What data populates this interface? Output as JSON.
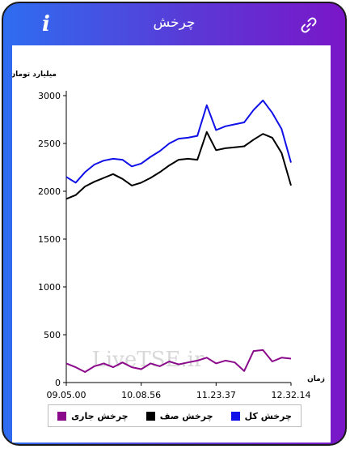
{
  "header": {
    "title": "چرخش",
    "info_glyph": "i",
    "info_icon": "info-icon",
    "link_icon": "link-icon"
  },
  "colors": {
    "total": "#1010e8",
    "queue": "#000000",
    "current": "#8b0a8b",
    "header_gradient_start": "#2e6df0",
    "header_gradient_end": "#7a16c8"
  },
  "chart_data": {
    "type": "line",
    "ylabel": "میلیارد تومان",
    "xlabel": "زمان",
    "ylim": [
      0,
      3000
    ],
    "yticks": [
      0,
      500,
      1000,
      1500,
      2000,
      2500,
      3000
    ],
    "xticks": [
      "09.05.00",
      "10.08.56",
      "11.23.37",
      "12.32.14"
    ],
    "watermark": "LiveTSE.ir",
    "grid": false,
    "legend_position": "bottom",
    "series": [
      {
        "name": "چرخش کل",
        "color": "#1010e8",
        "points": [
          [
            "09.05.00",
            2150
          ],
          [
            "09.10",
            2090
          ],
          [
            "09.20",
            2200
          ],
          [
            "09.30",
            2280
          ],
          [
            "09.40",
            2320
          ],
          [
            "09.50",
            2340
          ],
          [
            "10.00",
            2330
          ],
          [
            "10.08.56",
            2260
          ],
          [
            "10.20",
            2290
          ],
          [
            "10.30",
            2360
          ],
          [
            "10.40",
            2420
          ],
          [
            "10.50",
            2500
          ],
          [
            "11.00",
            2550
          ],
          [
            "11.10",
            2560
          ],
          [
            "11.20",
            2580
          ],
          [
            "11.22",
            2900
          ],
          [
            "11.23.37",
            2640
          ],
          [
            "11.40",
            2680
          ],
          [
            "11.55",
            2700
          ],
          [
            "12.05",
            2720
          ],
          [
            "12.15",
            2850
          ],
          [
            "12.20",
            2950
          ],
          [
            "12.26",
            2820
          ],
          [
            "12.30",
            2650
          ],
          [
            "12.32.14",
            2300
          ]
        ]
      },
      {
        "name": "چرخش صف",
        "color": "#000000",
        "points": [
          [
            "09.05.00",
            1920
          ],
          [
            "09.10",
            1960
          ],
          [
            "09.20",
            2050
          ],
          [
            "09.30",
            2100
          ],
          [
            "09.40",
            2140
          ],
          [
            "09.50",
            2180
          ],
          [
            "10.00",
            2130
          ],
          [
            "10.08.56",
            2060
          ],
          [
            "10.20",
            2090
          ],
          [
            "10.30",
            2140
          ],
          [
            "10.40",
            2200
          ],
          [
            "10.50",
            2270
          ],
          [
            "11.00",
            2330
          ],
          [
            "11.10",
            2340
          ],
          [
            "11.20",
            2330
          ],
          [
            "11.22",
            2620
          ],
          [
            "11.23.37",
            2430
          ],
          [
            "11.40",
            2450
          ],
          [
            "11.55",
            2460
          ],
          [
            "12.05",
            2470
          ],
          [
            "12.15",
            2540
          ],
          [
            "12.20",
            2600
          ],
          [
            "12.26",
            2560
          ],
          [
            "12.30",
            2400
          ],
          [
            "12.32.14",
            2060
          ]
        ]
      },
      {
        "name": "چرخش جاری",
        "color": "#8b0a8b",
        "points": [
          [
            "09.05.00",
            200
          ],
          [
            "09.10",
            160
          ],
          [
            "09.20",
            110
          ],
          [
            "09.30",
            170
          ],
          [
            "09.40",
            200
          ],
          [
            "09.50",
            160
          ],
          [
            "10.00",
            210
          ],
          [
            "10.08.56",
            160
          ],
          [
            "10.20",
            140
          ],
          [
            "10.30",
            200
          ],
          [
            "10.40",
            170
          ],
          [
            "10.50",
            220
          ],
          [
            "11.00",
            190
          ],
          [
            "11.10",
            210
          ],
          [
            "11.20",
            230
          ],
          [
            "11.22",
            260
          ],
          [
            "11.23.37",
            200
          ],
          [
            "11.40",
            230
          ],
          [
            "11.55",
            210
          ],
          [
            "12.05",
            120
          ],
          [
            "12.15",
            330
          ],
          [
            "12.20",
            340
          ],
          [
            "12.26",
            220
          ],
          [
            "12.30",
            260
          ],
          [
            "12.32.14",
            250
          ]
        ]
      }
    ]
  }
}
